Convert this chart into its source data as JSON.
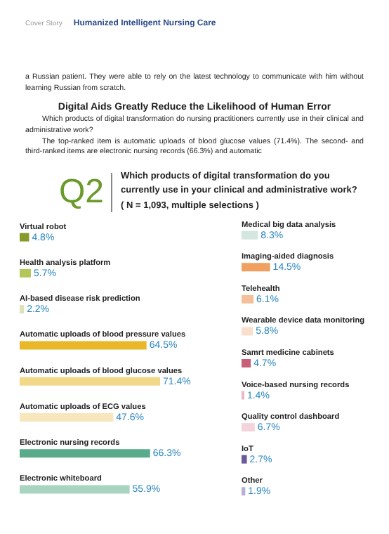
{
  "chart_data": [
    {
      "type": "bar",
      "orientation": "horizontal",
      "title": "Which products of digital transformation do you currently use in your clinical and administrative work?",
      "subtitle": "( N = 1,093, multiple selections )",
      "annotations": [
        "Cover Story",
        "Humanized Intelligent Nursing Care",
        "a Russian patient. They were able to rely on the latest technology to communicate with him without learning Russian from scratch.",
        "Digital Aids Greatly Reduce the Likelihood of Human Error",
        "Which products of digital transformation do nursing practitioners currently use in their clinical and administrative work?",
        "The top-ranked item is automatic uploads of blood glucose values (71.4%). The second- and third-ranked items are electronic nursing records (66.3%) and automatic",
        "Q2"
      ],
      "categories": [
        "Virtual robot",
        "Health analysis platform",
        "AI-based  disease risk prediction",
        "Automatic uploads of blood pressure values",
        "Automatic uploads of blood glucose values",
        "Automatic uploads of ECG values",
        "Electronic nursing records",
        "Electronic whiteboard"
      ],
      "values": [
        4.8,
        5.7,
        2.2,
        64.5,
        71.4,
        47.6,
        66.3,
        55.9
      ],
      "value_labels": [
        "4.8%",
        "5.7%",
        "2.2%",
        "64.5%",
        "71.4%",
        "47.6%",
        "66.3%",
        "55.9%"
      ],
      "colors": [
        "#8a9a2a",
        "#b5c55a",
        "#dde3b8",
        "#e8b828",
        "#f2d98a",
        "#f8e6bc",
        "#5aaa8c",
        "#a8d4c0"
      ]
    },
    {
      "type": "bar",
      "orientation": "horizontal",
      "categories": [
        "Medical big data analysis",
        "Imaging-aided diagnosis",
        "Telehealth",
        "Wearable device data monitoring",
        "Samrt medicine cabinets",
        "Voice-based nursing records",
        "Quality control dashboard",
        "IoT",
        "Other"
      ],
      "values": [
        8.3,
        14.5,
        6.1,
        5.8,
        4.7,
        1.4,
        6.7,
        2.7,
        1.9
      ],
      "value_labels": [
        "8.3%",
        "14.5%",
        "6.1%",
        "5.8%",
        "4.7%",
        "1.4%",
        "6.7%",
        "2.7%",
        "1.9%"
      ],
      "colors": [
        "#d4e6e0",
        "#f0a060",
        "#f4c09a",
        "#fae0cc",
        "#c8607a",
        "#e8b8c4",
        "#f4d4dc",
        "#6a5a9a",
        "#b8b0d4"
      ]
    }
  ]
}
